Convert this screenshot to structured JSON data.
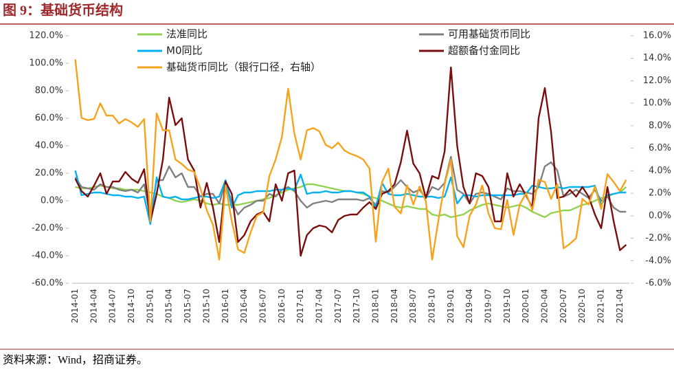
{
  "chart_data": {
    "type": "line",
    "title": "图 9：基础货币结构",
    "source": "资料来源：Wind，招商证券。",
    "categories": [
      "2014-01",
      null,
      null,
      "2014-04",
      null,
      null,
      "2014-07",
      null,
      null,
      "2014-10",
      null,
      null,
      "2015-01",
      null,
      null,
      "2015-04",
      null,
      null,
      "2015-07",
      null,
      null,
      "2015-10",
      null,
      null,
      "2016-01",
      null,
      null,
      "2016-04",
      null,
      null,
      "2016-07",
      null,
      null,
      "2016-10",
      null,
      null,
      "2017-01",
      null,
      null,
      "2017-04",
      null,
      null,
      "2017-07",
      null,
      null,
      "2017-10",
      null,
      null,
      "2018-01",
      null,
      null,
      "2018-04",
      null,
      null,
      "2018-07",
      null,
      null,
      "2018-10",
      null,
      null,
      "2019-01",
      null,
      null,
      "2019-04",
      null,
      null,
      "2019-07",
      null,
      null,
      "2019-10",
      null,
      null,
      "2020-01",
      null,
      null,
      "2020-04",
      null,
      null,
      "2020-07",
      null,
      null,
      "2020-10",
      null,
      null,
      "2021-01",
      null,
      null,
      "2021-04",
      null
    ],
    "ylim": [
      -60,
      120
    ],
    "yticks": [
      {
        "value": -60,
        "label": "-60.0%"
      },
      {
        "value": -40,
        "label": "-40.0%"
      },
      {
        "value": -20,
        "label": "-20.0%"
      },
      {
        "value": 0,
        "label": "0.0%"
      },
      {
        "value": 20,
        "label": "20.0%"
      },
      {
        "value": 40,
        "label": "40.0%"
      },
      {
        "value": 60,
        "label": "60.0%"
      },
      {
        "value": 80,
        "label": "80.0%"
      },
      {
        "value": 100,
        "label": "100.0%"
      },
      {
        "value": 120,
        "label": "120.0%"
      }
    ],
    "y2lim": [
      -6,
      16
    ],
    "y2ticks": [
      {
        "value": -6,
        "label": "-6.0%"
      },
      {
        "value": -4,
        "label": "-4.0%"
      },
      {
        "value": -2,
        "label": "-2.0%"
      },
      {
        "value": 0,
        "label": "0.0%"
      },
      {
        "value": 2,
        "label": "2.0%"
      },
      {
        "value": 4,
        "label": "4.0%"
      },
      {
        "value": 6,
        "label": "6.0%"
      },
      {
        "value": 8,
        "label": "8.0%"
      },
      {
        "value": 10,
        "label": "10.0%"
      },
      {
        "value": 12,
        "label": "12.0%"
      },
      {
        "value": 14,
        "label": "14.0%"
      },
      {
        "value": 16,
        "label": "16.0%"
      }
    ],
    "series": [
      {
        "name": "法准同比",
        "color": "#92d050",
        "values": [
          10,
          9,
          9,
          10,
          11,
          10,
          9,
          9,
          8,
          8,
          8,
          7,
          6,
          5,
          3,
          2,
          0,
          -1,
          0,
          1,
          0,
          -2,
          -3,
          -2,
          -3,
          -3,
          -3,
          -2,
          -1,
          0,
          1,
          2,
          4,
          6,
          8,
          9,
          10,
          12,
          12,
          11,
          10,
          9,
          8,
          7,
          7,
          6,
          5,
          3,
          2,
          0,
          -2,
          -4,
          -5,
          -4,
          -5,
          -6,
          -6,
          -10,
          -11,
          -10,
          -12,
          -11,
          -10,
          -7,
          -5,
          -3,
          -2,
          -3,
          -4,
          -5,
          -4,
          -3,
          -5,
          -8,
          -10,
          -12,
          -9,
          -8,
          -7,
          -7,
          -5,
          -3,
          -2,
          0,
          2,
          3,
          5,
          6,
          10
        ]
      },
      {
        "name": "可用基础货币同比",
        "color": "#7f7f7f",
        "values": [
          17,
          10,
          9,
          8,
          12,
          10,
          10,
          8,
          7,
          8,
          6,
          12,
          -12,
          15,
          15,
          25,
          17,
          20,
          10,
          10,
          3,
          5,
          5,
          -2,
          13,
          -1,
          -10,
          -5,
          -3,
          0,
          0,
          5,
          3,
          8,
          10,
          7,
          0,
          -5,
          -2,
          -1,
          0,
          -1,
          1,
          1,
          1,
          1,
          0,
          2,
          -3,
          7,
          6,
          10,
          15,
          10,
          6,
          8,
          2,
          10,
          8,
          13,
          32,
          8,
          5,
          -2,
          5,
          6,
          5,
          3,
          1,
          9,
          7,
          7,
          6,
          5,
          10,
          25,
          28,
          22,
          3,
          5,
          8,
          5,
          2,
          8,
          0,
          3,
          -5,
          -8,
          -8
        ]
      },
      {
        "name": "M0同比",
        "color": "#00b0f0",
        "values": [
          22,
          4,
          5,
          6,
          6,
          5,
          4,
          4,
          3,
          3,
          2,
          3,
          -17,
          17,
          3,
          2,
          3,
          1,
          1,
          2,
          3,
          3,
          2,
          3,
          15,
          -5,
          4,
          6,
          6,
          7,
          7,
          7,
          8,
          8,
          9,
          8,
          19,
          5,
          6,
          6,
          7,
          6,
          6,
          7,
          7,
          6,
          6,
          3,
          -5,
          13,
          5,
          4,
          4,
          5,
          4,
          3,
          3,
          3,
          2,
          3,
          17,
          -2,
          4,
          4,
          3,
          4,
          4,
          4,
          4,
          4,
          4,
          5,
          5,
          11,
          10,
          9,
          9,
          10,
          9,
          10,
          10,
          10,
          10,
          11,
          -3,
          4,
          5,
          6,
          6
        ]
      },
      {
        "name": "超额备付金同比",
        "color": "#7b0c0c",
        "values": [
          16,
          7,
          3,
          11,
          20,
          5,
          14,
          14,
          21,
          16,
          13,
          23,
          -15,
          5,
          30,
          75,
          55,
          60,
          30,
          22,
          -5,
          13,
          -5,
          -30,
          14,
          5,
          -30,
          -25,
          -15,
          -10,
          -8,
          -15,
          12,
          0,
          20,
          22,
          -40,
          -25,
          -20,
          -18,
          -19,
          -23,
          -14,
          -11,
          -10,
          -10,
          -5,
          -1,
          -6,
          5,
          7,
          12,
          28,
          51,
          27,
          20,
          2,
          18,
          16,
          36,
          97,
          40,
          10,
          -2,
          20,
          18,
          10,
          -15,
          -15,
          20,
          3,
          12,
          4,
          -5,
          60,
          82,
          50,
          2,
          3,
          8,
          3,
          10,
          3,
          -10,
          -20,
          10,
          -15,
          -36,
          -32
        ]
      },
      {
        "name": "基础货币同比（银行口径，右轴）",
        "color": "#f7a21b",
        "axis": "y2",
        "values": [
          13.9,
          8.7,
          8.5,
          8.6,
          10.0,
          8.9,
          8.9,
          8.2,
          8.6,
          8.3,
          7.9,
          8.6,
          -0.5,
          9.1,
          7.6,
          7.6,
          5.0,
          4.6,
          4.1,
          3.9,
          2.4,
          0.5,
          -0.8,
          -3.9,
          2.7,
          -0.5,
          -3.0,
          -3.3,
          -1.5,
          0.0,
          0.3,
          3.5,
          5.0,
          7.0,
          11.3,
          7.3,
          5.0,
          7.6,
          7.8,
          7.5,
          6.3,
          6.0,
          6.5,
          5.8,
          5.5,
          5.3,
          5.0,
          4.2,
          -2.3,
          3.0,
          4.2,
          0.8,
          0.2,
          2.7,
          1.0,
          2.6,
          1.3,
          -3.9,
          -0.4,
          2.8,
          5.0,
          -1.8,
          -2.8,
          0.0,
          1.0,
          2.7,
          0.2,
          -1.1,
          -1.2,
          1.4,
          -1.7,
          1.0,
          2.0,
          0.5,
          3.2,
          3.0,
          1.5,
          2.8,
          -2.9,
          -2.5,
          -2.0,
          1.5,
          1.0,
          2.6,
          0.6,
          3.7,
          3.0,
          2.2,
          3.2
        ]
      }
    ]
  }
}
